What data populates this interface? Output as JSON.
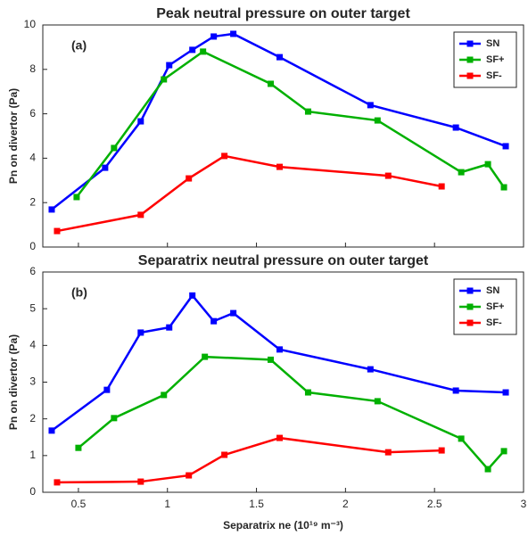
{
  "chart_data": [
    {
      "type": "line",
      "title": "Peak neutral pressure on outer target",
      "annotation": "(a)",
      "y_label": "Pn on divertor (Pa)",
      "xlim": [
        0.3,
        3
      ],
      "xticks": [
        0.5,
        1,
        1.5,
        2,
        2.5,
        3
      ],
      "ylim": [
        0,
        10
      ],
      "yticks": [
        0,
        2,
        4,
        6,
        8,
        10
      ],
      "legend": "upper right",
      "series": [
        {
          "name": "SN",
          "color": "#0000ff",
          "x": [
            0.35,
            0.65,
            0.85,
            1.01,
            1.14,
            1.26,
            1.37,
            1.63,
            2.14,
            2.62,
            2.9
          ],
          "values": [
            1.69,
            3.57,
            5.66,
            8.19,
            8.88,
            9.48,
            9.6,
            8.55,
            6.39,
            5.38,
            4.54
          ]
        },
        {
          "name": "SF+",
          "color": "#00b000",
          "x": [
            0.49,
            0.7,
            0.98,
            1.2,
            1.58,
            1.79,
            2.18,
            2.65,
            2.8,
            2.89
          ],
          "values": [
            2.25,
            4.46,
            7.55,
            8.8,
            7.35,
            6.1,
            5.7,
            3.37,
            3.73,
            2.69
          ]
        },
        {
          "name": "SF-",
          "color": "#ff0000",
          "x": [
            0.38,
            0.85,
            1.12,
            1.32,
            1.63,
            2.24,
            2.54
          ],
          "values": [
            0.72,
            1.45,
            3.09,
            4.1,
            3.61,
            3.21,
            2.73
          ]
        }
      ]
    },
    {
      "type": "line",
      "title": "Separatrix neutral pressure on outer target",
      "annotation": "(b)",
      "y_label": "Pn on divertor (Pa)",
      "x_label": "Separatrix ne (10¹⁹ m⁻³)",
      "xlim": [
        0.3,
        3
      ],
      "xticks": [
        0.5,
        1,
        1.5,
        2,
        2.5,
        3
      ],
      "ylim": [
        0,
        6
      ],
      "yticks": [
        0,
        1,
        2,
        3,
        4,
        5,
        6
      ],
      "legend": "upper right",
      "series": [
        {
          "name": "SN",
          "color": "#0000ff",
          "x": [
            0.35,
            0.66,
            0.85,
            1.01,
            1.14,
            1.26,
            1.37,
            1.63,
            2.14,
            2.62,
            2.9
          ],
          "values": [
            1.68,
            2.79,
            4.35,
            4.49,
            5.36,
            4.66,
            4.88,
            3.89,
            3.35,
            2.77,
            2.72
          ]
        },
        {
          "name": "SF+",
          "color": "#00b000",
          "x": [
            0.5,
            0.7,
            0.98,
            1.21,
            1.58,
            1.79,
            2.18,
            2.65,
            2.8,
            2.89
          ],
          "values": [
            1.21,
            2.02,
            2.65,
            3.69,
            3.61,
            2.72,
            2.48,
            1.46,
            0.63,
            1.12
          ]
        },
        {
          "name": "SF-",
          "color": "#ff0000",
          "x": [
            0.38,
            0.85,
            1.12,
            1.32,
            1.63,
            2.24,
            2.54
          ],
          "values": [
            0.27,
            0.29,
            0.46,
            1.02,
            1.48,
            1.09,
            1.14
          ]
        }
      ]
    }
  ]
}
